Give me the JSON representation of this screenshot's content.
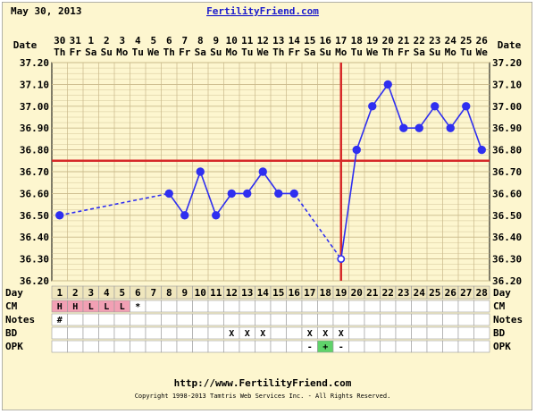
{
  "header": {
    "date": "May 30, 2013",
    "site": "FertilityFriend.com",
    "footer_url": "http://www.FertilityFriend.com",
    "copyright": "Copyright 1998-2013 Tamtris Web Services Inc. - All Rights Reserved."
  },
  "row_labels": {
    "date": "Date",
    "day": "Day",
    "cm": "CM",
    "notes": "Notes",
    "bd": "BD",
    "opk": "OPK"
  },
  "colors": {
    "background": "#fdf6cf",
    "grid": "#c9b98a",
    "line": "#2f2ff0",
    "marker": "#2f2ff0",
    "coverline": "#d62a2a",
    "ovulation": "#d62a2a",
    "cm_cell": "#f2a0b4",
    "opk_positive": "#5fd36a"
  },
  "dates": [
    "30",
    "31",
    "1",
    "2",
    "3",
    "4",
    "5",
    "6",
    "7",
    "8",
    "9",
    "10",
    "11",
    "12",
    "13",
    "14",
    "15",
    "16",
    "17",
    "18",
    "19",
    "20",
    "21",
    "22",
    "23",
    "24",
    "25",
    "26"
  ],
  "weekdays": [
    "Th",
    "Fr",
    "Sa",
    "Su",
    "Mo",
    "Tu",
    "We",
    "Th",
    "Fr",
    "Sa",
    "Su",
    "Mo",
    "Tu",
    "We",
    "Th",
    "Fr",
    "Sa",
    "Su",
    "Mo",
    "Tu",
    "We",
    "Th",
    "Fr",
    "Sa",
    "Su",
    "Mo",
    "Tu",
    "We"
  ],
  "days": [
    "1",
    "2",
    "3",
    "4",
    "5",
    "6",
    "7",
    "8",
    "9",
    "10",
    "11",
    "12",
    "13",
    "14",
    "15",
    "16",
    "17",
    "18",
    "19",
    "20",
    "21",
    "22",
    "23",
    "24",
    "25",
    "26",
    "27",
    "28"
  ],
  "cm": [
    "H",
    "H",
    "L",
    "L",
    "L",
    "*",
    "",
    "",
    "",
    "",
    "",
    "",
    "",
    "",
    "",
    "",
    "",
    "",
    "",
    "",
    "",
    "",
    "",
    "",
    "",
    "",
    "",
    ""
  ],
  "notes": [
    "#",
    "",
    "",
    "",
    "",
    "",
    "",
    "",
    "",
    "",
    "",
    "",
    "",
    "",
    "",
    "",
    "",
    "",
    "",
    "",
    "",
    "",
    "",
    "",
    "",
    "",
    "",
    ""
  ],
  "bd": [
    "",
    "",
    "",
    "",
    "",
    "",
    "",
    "",
    "",
    "",
    "",
    "X",
    "X",
    "X",
    "",
    "",
    "X",
    "X",
    "X",
    "",
    "",
    "",
    "",
    "",
    "",
    "",
    "",
    ""
  ],
  "opk": [
    "",
    "",
    "",
    "",
    "",
    "",
    "",
    "",
    "",
    "",
    "",
    "",
    "",
    "",
    "",
    "",
    "-",
    "+",
    "-",
    "",
    "",
    "",
    "",
    "",
    "",
    "",
    "",
    ""
  ],
  "chart_data": {
    "type": "line",
    "x": [
      1,
      2,
      3,
      4,
      5,
      6,
      7,
      8,
      9,
      10,
      11,
      12,
      13,
      14,
      15,
      16,
      17,
      18,
      19,
      20,
      21,
      22,
      23,
      24,
      25,
      26,
      27,
      28
    ],
    "series": [
      {
        "values": [
          36.5,
          null,
          null,
          null,
          null,
          null,
          null,
          36.6,
          36.5,
          36.7,
          36.5,
          36.6,
          36.6,
          36.7,
          36.6,
          36.6,
          null,
          null,
          36.3,
          36.8,
          37.0,
          37.1,
          36.9,
          36.9,
          37.0,
          36.9,
          37.0,
          36.8
        ],
        "dashed_gaps": [
          [
            1,
            8
          ],
          [
            16,
            19
          ]
        ]
      }
    ],
    "yticks": [
      "37.20",
      "37.10",
      "37.00",
      "36.90",
      "36.80",
      "36.70",
      "36.60",
      "36.50",
      "36.40",
      "36.30",
      "36.20"
    ],
    "ylim": [
      36.2,
      37.2
    ],
    "coverline": 36.75,
    "ovulation_day": 19,
    "grid": true
  }
}
